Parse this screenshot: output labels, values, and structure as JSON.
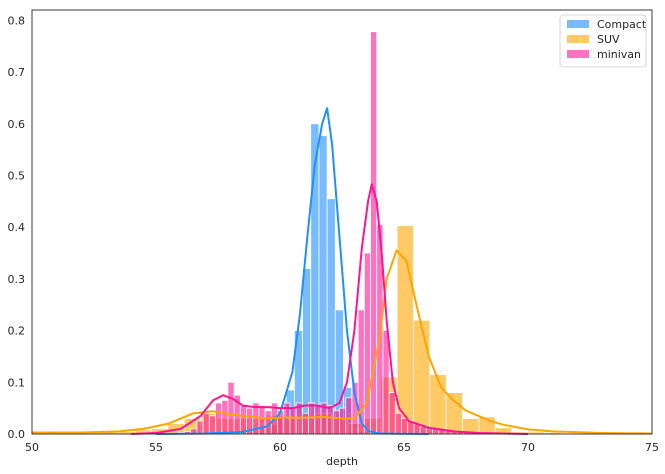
{
  "chart_data": {
    "type": "bar",
    "title": "",
    "xlabel": "depth",
    "ylabel": "",
    "xlim": [
      50,
      75
    ],
    "ylim": [
      0,
      0.82
    ],
    "xticks": [
      "50",
      "55",
      "60",
      "65",
      "70",
      "75"
    ],
    "yticks": [
      "0.0",
      "0.1",
      "0.2",
      "0.3",
      "0.4",
      "0.5",
      "0.6",
      "0.7",
      "0.8"
    ],
    "grid": false,
    "legend_position": "top-right",
    "series": [
      {
        "name": "Compact",
        "color": "#1e90ff",
        "bin_width": 0.33,
        "bins": [
          [
            58.6,
            0.004
          ],
          [
            58.93,
            0.006
          ],
          [
            59.26,
            0.01
          ],
          [
            59.59,
            0.018
          ],
          [
            59.92,
            0.035
          ],
          [
            60.25,
            0.085
          ],
          [
            60.58,
            0.2
          ],
          [
            60.91,
            0.32
          ],
          [
            61.24,
            0.6
          ],
          [
            61.57,
            0.577
          ],
          [
            61.9,
            0.455
          ],
          [
            62.23,
            0.24
          ],
          [
            62.56,
            0.09
          ],
          [
            62.89,
            0.02
          ],
          [
            63.22,
            0.005
          ]
        ],
        "kde": [
          [
            55,
            0
          ],
          [
            57,
            0.001
          ],
          [
            58.5,
            0.004
          ],
          [
            59.5,
            0.015
          ],
          [
            60,
            0.04
          ],
          [
            60.5,
            0.12
          ],
          [
            60.8,
            0.23
          ],
          [
            61.1,
            0.38
          ],
          [
            61.4,
            0.52
          ],
          [
            61.7,
            0.6
          ],
          [
            61.9,
            0.63
          ],
          [
            62.1,
            0.56
          ],
          [
            62.4,
            0.38
          ],
          [
            62.7,
            0.2
          ],
          [
            63,
            0.08
          ],
          [
            63.3,
            0.02
          ],
          [
            63.6,
            0.005
          ],
          [
            64,
            0.001
          ],
          [
            66,
            0
          ]
        ]
      },
      {
        "name": "SUV",
        "color": "#ffa500",
        "bin_width": 0.66,
        "bins": [
          [
            50.2,
            0.004
          ],
          [
            50.86,
            0.004
          ],
          [
            51.52,
            0.004
          ],
          [
            52.18,
            0.004
          ],
          [
            52.84,
            0.004
          ],
          [
            53.5,
            0.005
          ],
          [
            54.16,
            0.008
          ],
          [
            54.82,
            0.01
          ],
          [
            55.48,
            0.02
          ],
          [
            56.14,
            0.03
          ],
          [
            56.8,
            0.04
          ],
          [
            57.46,
            0.03
          ],
          [
            58.12,
            0.03
          ],
          [
            58.78,
            0.03
          ],
          [
            59.44,
            0.035
          ],
          [
            60.1,
            0.03
          ],
          [
            60.76,
            0.03
          ],
          [
            61.42,
            0.04
          ],
          [
            62.08,
            0.03
          ],
          [
            62.74,
            0.02
          ],
          [
            63.4,
            0.03
          ],
          [
            64.06,
            0.11
          ],
          [
            64.72,
            0.403
          ],
          [
            65.38,
            0.22
          ],
          [
            66.04,
            0.115
          ],
          [
            66.7,
            0.08
          ],
          [
            67.36,
            0.03
          ],
          [
            68.02,
            0.033
          ],
          [
            68.68,
            0.012
          ],
          [
            69.34,
            0.004
          ],
          [
            70,
            0.004
          ],
          [
            70.66,
            0.003
          ]
        ],
        "kde": [
          [
            50,
            0.003
          ],
          [
            52,
            0.003
          ],
          [
            53.5,
            0.005
          ],
          [
            54.5,
            0.01
          ],
          [
            55.5,
            0.02
          ],
          [
            56.5,
            0.04
          ],
          [
            57.3,
            0.044
          ],
          [
            58,
            0.038
          ],
          [
            58.7,
            0.034
          ],
          [
            59.4,
            0.03
          ],
          [
            60.2,
            0.032
          ],
          [
            61,
            0.032
          ],
          [
            61.8,
            0.033
          ],
          [
            62.5,
            0.03
          ],
          [
            63,
            0.03
          ],
          [
            63.5,
            0.06
          ],
          [
            64,
            0.18
          ],
          [
            64.3,
            0.3
          ],
          [
            64.7,
            0.355
          ],
          [
            65.1,
            0.335
          ],
          [
            65.5,
            0.25
          ],
          [
            66,
            0.15
          ],
          [
            66.5,
            0.09
          ],
          [
            67,
            0.065
          ],
          [
            67.5,
            0.045
          ],
          [
            68,
            0.035
          ],
          [
            68.5,
            0.025
          ],
          [
            69,
            0.018
          ],
          [
            70,
            0.009
          ],
          [
            71,
            0.005
          ],
          [
            73,
            0.002
          ],
          [
            75,
            0.001
          ]
        ]
      },
      {
        "name": "minivan",
        "color": "#ff1493",
        "bin_width": 0.25,
        "bins": [
          [
            55.9,
            0.003
          ],
          [
            56.15,
            0.005
          ],
          [
            56.4,
            0.01
          ],
          [
            56.65,
            0.025
          ],
          [
            56.9,
            0.04
          ],
          [
            57.15,
            0.035
          ],
          [
            57.4,
            0.06
          ],
          [
            57.65,
            0.065
          ],
          [
            57.9,
            0.1
          ],
          [
            58.15,
            0.075
          ],
          [
            58.4,
            0.055
          ],
          [
            58.65,
            0.05
          ],
          [
            58.9,
            0.06
          ],
          [
            59.15,
            0.055
          ],
          [
            59.4,
            0.045
          ],
          [
            59.65,
            0.06
          ],
          [
            59.9,
            0.045
          ],
          [
            60.15,
            0.06
          ],
          [
            60.4,
            0.05
          ],
          [
            60.65,
            0.06
          ],
          [
            60.9,
            0.04
          ],
          [
            61.15,
            0.06
          ],
          [
            61.4,
            0.055
          ],
          [
            61.65,
            0.06
          ],
          [
            61.9,
            0.055
          ],
          [
            62.15,
            0.045
          ],
          [
            62.4,
            0.05
          ],
          [
            62.65,
            0.07
          ],
          [
            62.9,
            0.1
          ],
          [
            63.15,
            0.24
          ],
          [
            63.4,
            0.35
          ],
          [
            63.65,
            0.778
          ],
          [
            63.9,
            0.405
          ],
          [
            64.15,
            0.2
          ],
          [
            64.4,
            0.08
          ],
          [
            64.65,
            0.04
          ],
          [
            64.9,
            0.03
          ],
          [
            65.15,
            0.025
          ],
          [
            65.4,
            0.02
          ],
          [
            65.65,
            0.015
          ],
          [
            65.9,
            0.012
          ],
          [
            66.15,
            0.01
          ],
          [
            66.4,
            0.008
          ],
          [
            66.65,
            0.006
          ],
          [
            66.9,
            0.006
          ],
          [
            67.15,
            0.005
          ],
          [
            67.4,
            0.004
          ],
          [
            67.65,
            0.003
          ],
          [
            67.9,
            0.002
          ]
        ],
        "kde": [
          [
            54,
            0
          ],
          [
            55,
            0.002
          ],
          [
            56,
            0.01
          ],
          [
            56.8,
            0.035
          ],
          [
            57.3,
            0.065
          ],
          [
            57.7,
            0.075
          ],
          [
            58.1,
            0.068
          ],
          [
            58.5,
            0.055
          ],
          [
            59,
            0.052
          ],
          [
            59.5,
            0.052
          ],
          [
            60,
            0.05
          ],
          [
            60.5,
            0.05
          ],
          [
            61,
            0.055
          ],
          [
            61.5,
            0.055
          ],
          [
            62,
            0.05
          ],
          [
            62.4,
            0.06
          ],
          [
            62.7,
            0.1
          ],
          [
            63,
            0.2
          ],
          [
            63.3,
            0.36
          ],
          [
            63.55,
            0.45
          ],
          [
            63.7,
            0.483
          ],
          [
            63.9,
            0.45
          ],
          [
            64.1,
            0.35
          ],
          [
            64.3,
            0.22
          ],
          [
            64.55,
            0.1
          ],
          [
            64.8,
            0.05
          ],
          [
            65.2,
            0.025
          ],
          [
            66,
            0.012
          ],
          [
            67,
            0.005
          ],
          [
            68,
            0.002
          ],
          [
            70,
            0
          ]
        ]
      }
    ]
  }
}
